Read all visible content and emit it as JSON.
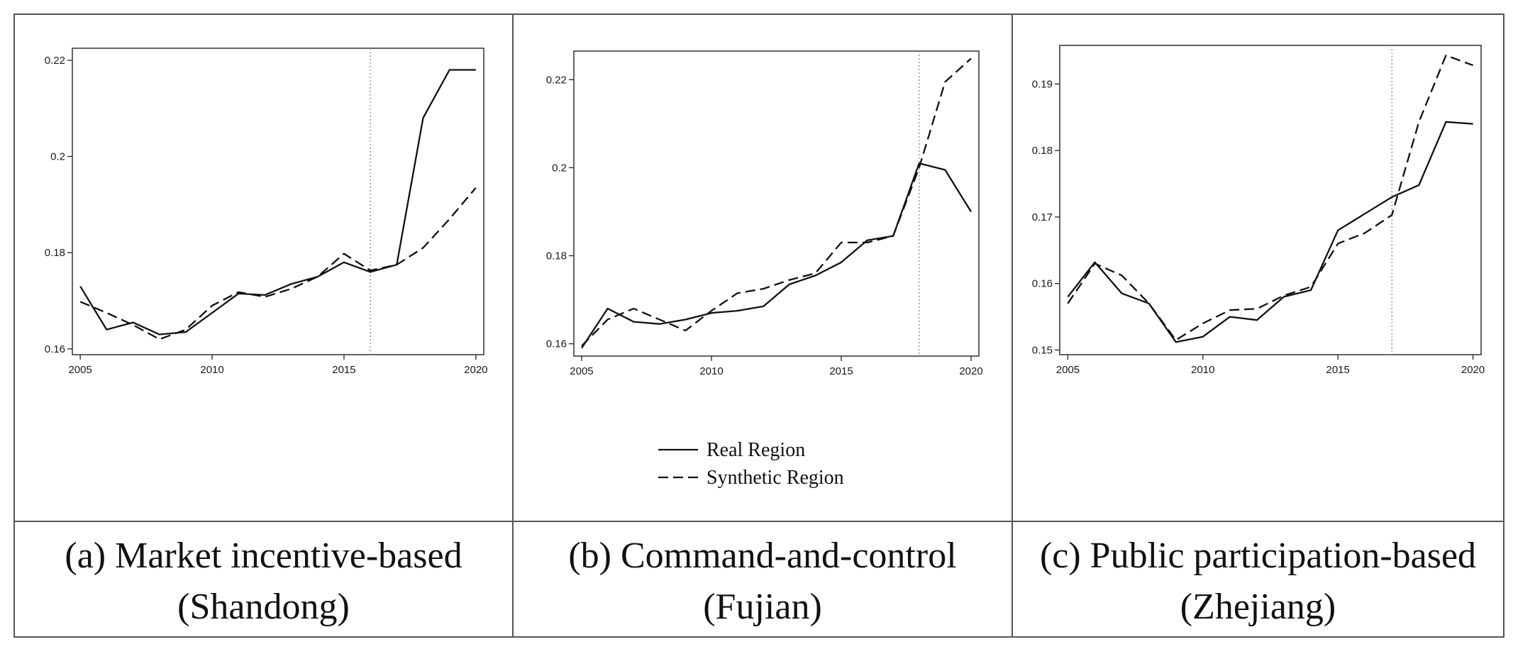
{
  "chart_data": [
    {
      "type": "line",
      "panel": "a",
      "caption_line1": "(a) Market incentive-based",
      "caption_line2": "(Shandong)",
      "title": "",
      "xlabel": "",
      "ylabel": "",
      "x": [
        2005,
        2006,
        2007,
        2008,
        2009,
        2010,
        2011,
        2012,
        2013,
        2014,
        2015,
        2016,
        2017,
        2018,
        2019,
        2020
      ],
      "series": [
        {
          "name": "Real Region",
          "style": "solid",
          "values": [
            0.173,
            0.164,
            0.1655,
            0.163,
            0.1635,
            0.1675,
            0.1715,
            0.1712,
            0.1735,
            0.175,
            0.178,
            0.176,
            0.1775,
            0.208,
            0.218,
            0.218
          ]
        },
        {
          "name": "Synthetic Region",
          "style": "dashed",
          "values": [
            0.1698,
            0.1675,
            0.165,
            0.162,
            0.164,
            0.169,
            0.1718,
            0.1708,
            0.1725,
            0.175,
            0.1798,
            0.1763,
            0.1775,
            0.181,
            0.187,
            0.1935
          ]
        }
      ],
      "intervention_year": 2016,
      "xlim": [
        2004.7,
        2020.3
      ],
      "ylim": [
        0.1588,
        0.2225
      ],
      "xticks": [
        2005,
        2010,
        2015,
        2020
      ],
      "xtick_labels": [
        "2005",
        "2010",
        "2015",
        "2020"
      ],
      "yticks": [
        0.16,
        0.18,
        0.2,
        0.22
      ],
      "ytick_labels": [
        "0.16",
        "0.18",
        "0.2",
        "0.22"
      ]
    },
    {
      "type": "line",
      "panel": "b",
      "caption_line1": "(b) Command-and-control",
      "caption_line2": "(Fujian)",
      "title": "",
      "xlabel": "",
      "ylabel": "",
      "x": [
        2005,
        2006,
        2007,
        2008,
        2009,
        2010,
        2011,
        2012,
        2013,
        2014,
        2015,
        2016,
        2017,
        2018,
        2019,
        2020
      ],
      "series": [
        {
          "name": "Real Region",
          "style": "solid",
          "values": [
            0.159,
            0.168,
            0.165,
            0.1645,
            0.1655,
            0.167,
            0.1675,
            0.1685,
            0.1735,
            0.1755,
            0.1785,
            0.1835,
            0.1845,
            0.201,
            0.1995,
            0.19
          ]
        },
        {
          "name": "Synthetic Region",
          "style": "dashed",
          "values": [
            0.1595,
            0.1655,
            0.168,
            0.1655,
            0.163,
            0.1675,
            0.1715,
            0.1725,
            0.1745,
            0.176,
            0.183,
            0.183,
            0.1845,
            0.2,
            0.2195,
            0.2248
          ]
        }
      ],
      "intervention_year": 2018,
      "xlim": [
        2004.7,
        2020.3
      ],
      "ylim": [
        0.1572,
        0.2265
      ],
      "xticks": [
        2005,
        2010,
        2015,
        2020
      ],
      "xtick_labels": [
        "2005",
        "2010",
        "2015",
        "2020"
      ],
      "yticks": [
        0.16,
        0.18,
        0.2,
        0.22
      ],
      "ytick_labels": [
        "0.16",
        "0.18",
        "0.2",
        "0.22"
      ]
    },
    {
      "type": "line",
      "panel": "c",
      "caption_line1": "(c) Public participation-based",
      "caption_line2": "(Zhejiang)",
      "title": "",
      "xlabel": "",
      "ylabel": "",
      "x": [
        2005,
        2006,
        2007,
        2008,
        2009,
        2010,
        2011,
        2012,
        2013,
        2014,
        2015,
        2016,
        2017,
        2018,
        2019,
        2020
      ],
      "series": [
        {
          "name": "Real Region",
          "style": "solid",
          "values": [
            0.158,
            0.1632,
            0.1585,
            0.157,
            0.1512,
            0.152,
            0.155,
            0.1545,
            0.158,
            0.159,
            0.168,
            0.1705,
            0.173,
            0.1748,
            0.1843,
            0.184
          ]
        },
        {
          "name": "Synthetic Region",
          "style": "dashed",
          "values": [
            0.157,
            0.163,
            0.1612,
            0.157,
            0.1515,
            0.154,
            0.156,
            0.1562,
            0.1582,
            0.1595,
            0.166,
            0.1676,
            0.1703,
            0.1843,
            0.1943,
            0.1928
          ]
        }
      ],
      "intervention_year": 2017,
      "xlim": [
        2004.7,
        2020.3
      ],
      "ylim": [
        0.1493,
        0.1958
      ],
      "xticks": [
        2005,
        2010,
        2015,
        2020
      ],
      "xtick_labels": [
        "2005",
        "2010",
        "2015",
        "2020"
      ],
      "yticks": [
        0.15,
        0.16,
        0.17,
        0.18,
        0.19
      ],
      "ytick_labels": [
        "0.15",
        "0.16",
        "0.17",
        "0.18",
        "0.19"
      ]
    }
  ],
  "legend": {
    "placement": "below-middle-panel",
    "entries": [
      {
        "label": "Real Region",
        "style": "solid"
      },
      {
        "label": "Synthetic Region",
        "style": "dashed"
      }
    ]
  }
}
